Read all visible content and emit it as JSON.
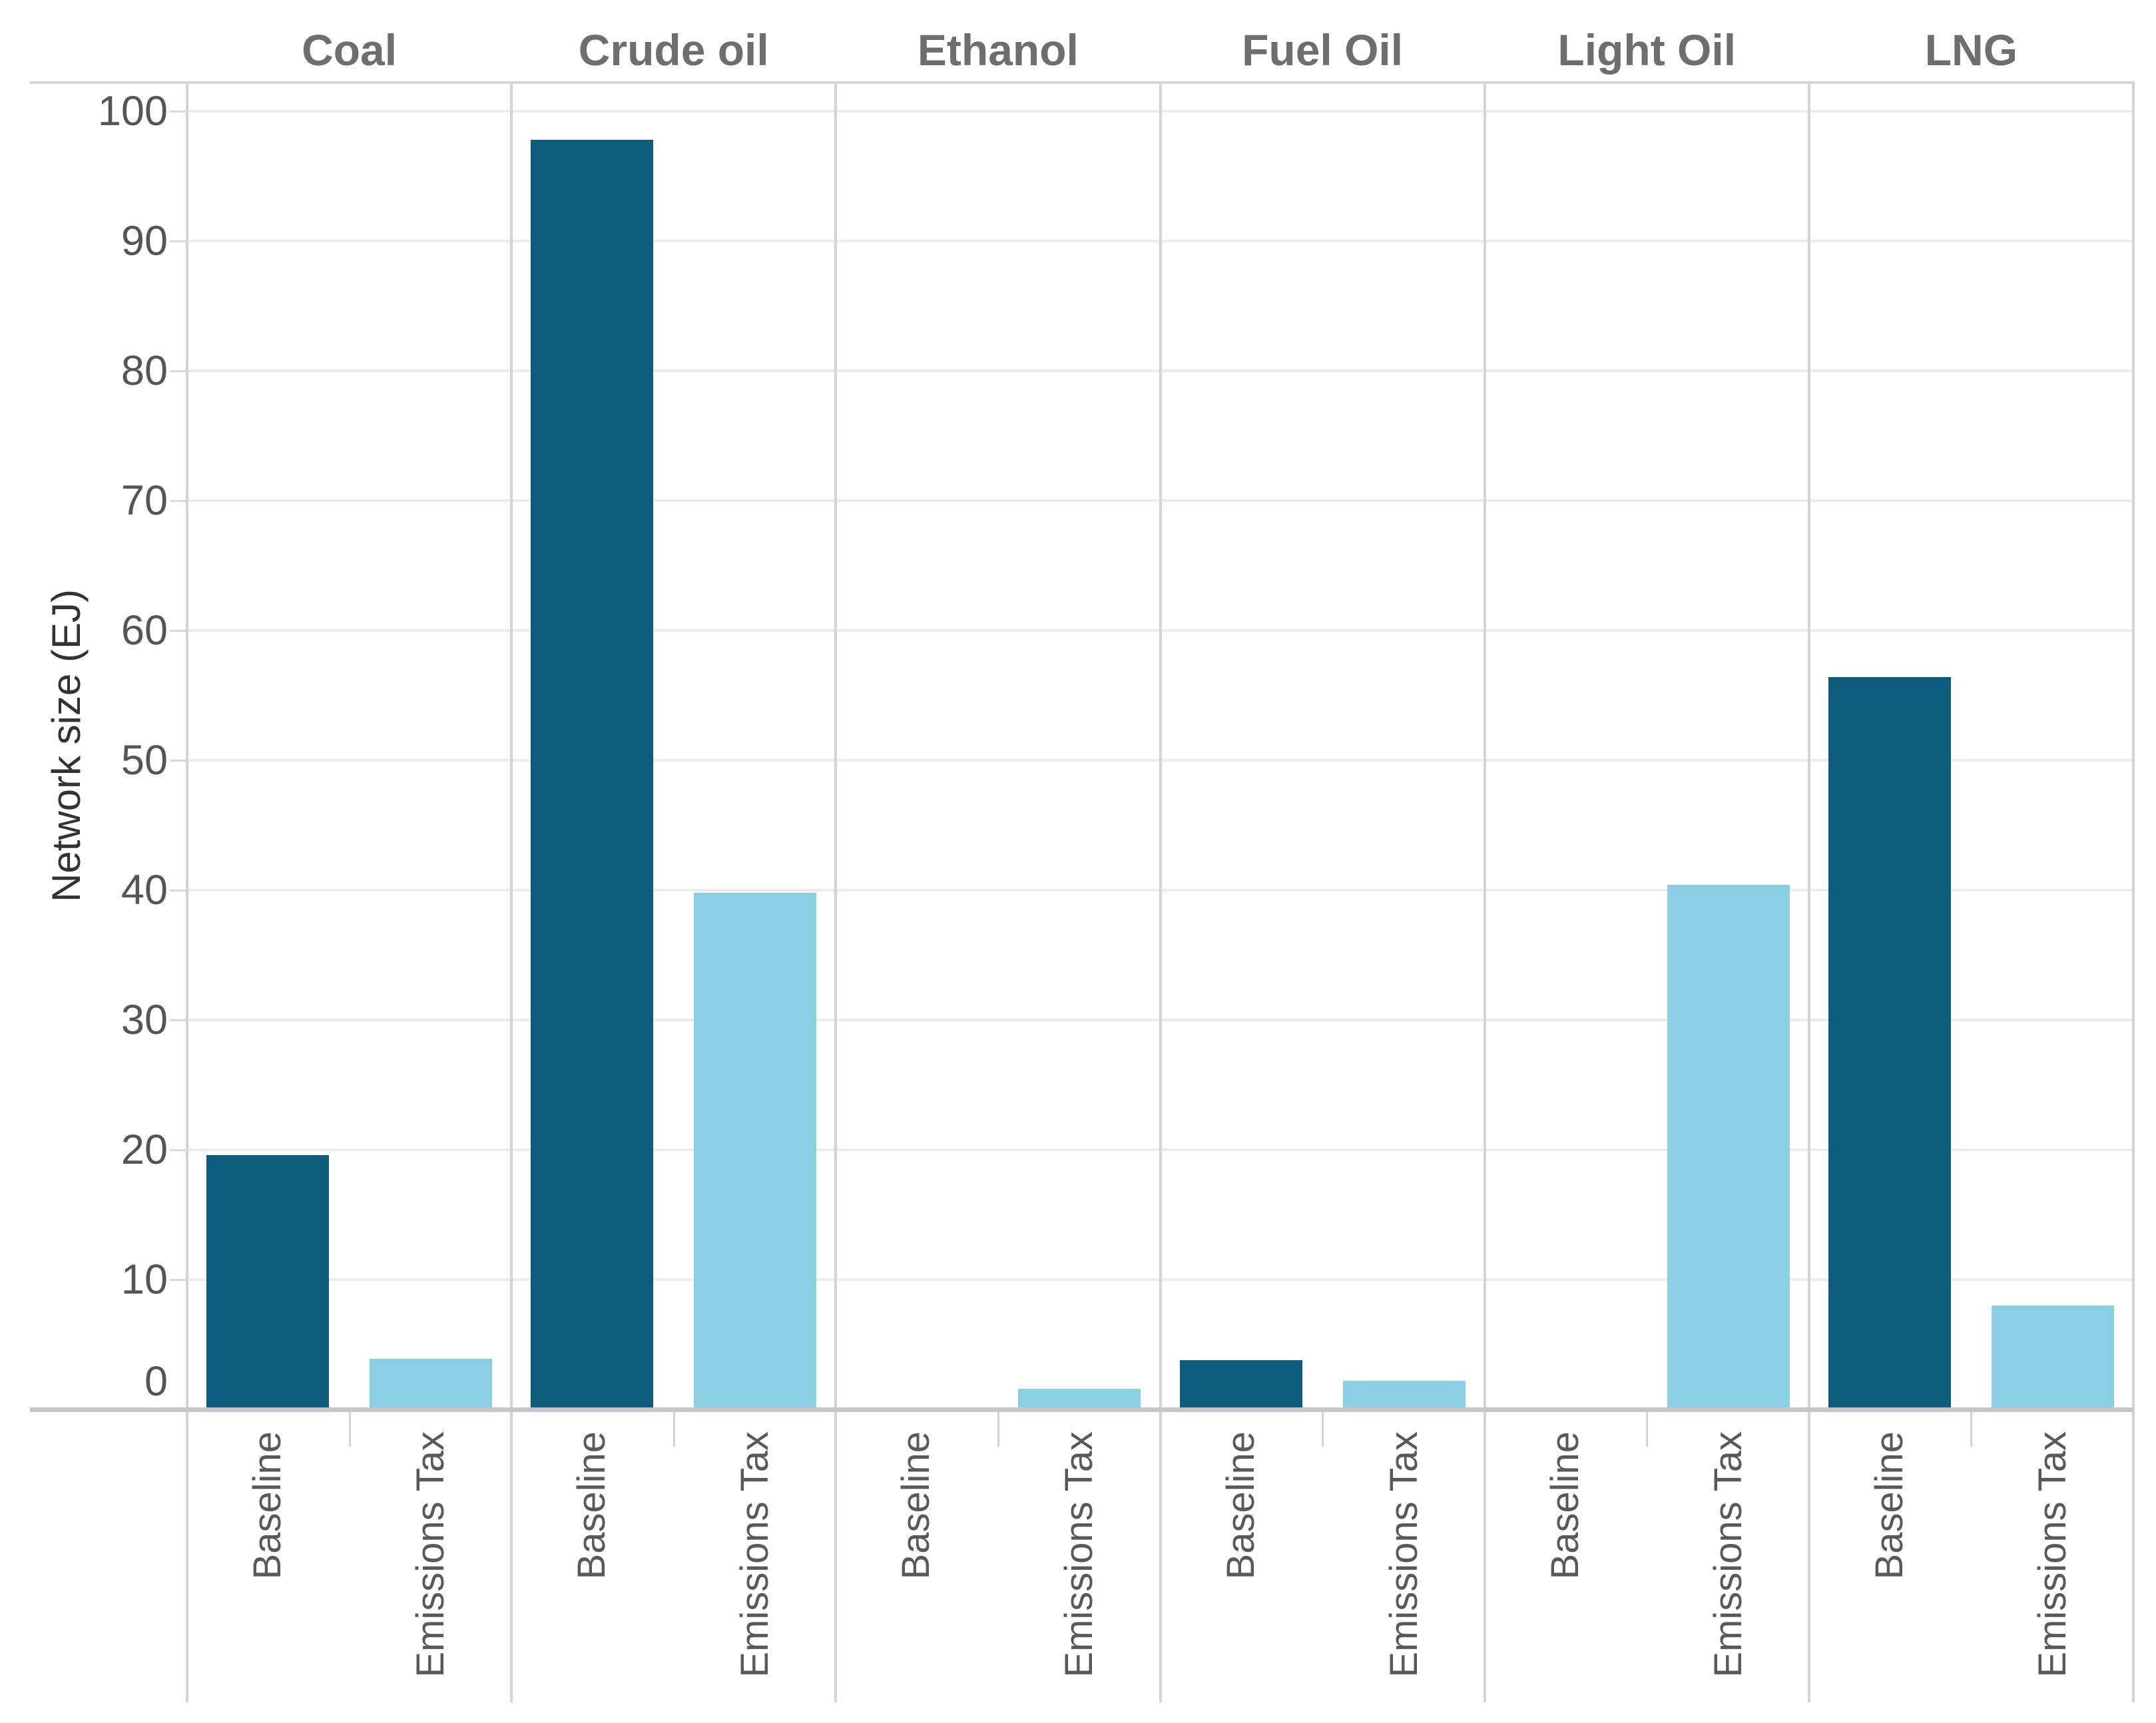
{
  "chart_data": {
    "type": "bar",
    "title": "",
    "ylabel": "Network size (EJ)",
    "xlabel": "",
    "ylim": [
      0,
      103
    ],
    "yticks": [
      0,
      10,
      20,
      30,
      40,
      50,
      60,
      70,
      80,
      90,
      100
    ],
    "grid": true,
    "legend_position": "none",
    "facets": [
      "Coal",
      "Crude oil",
      "Ethanol",
      "Fuel Oil",
      "Light Oil",
      "LNG"
    ],
    "categories": [
      "Baseline",
      "Emissions Tax"
    ],
    "series": [
      {
        "facet": "Coal",
        "values": [
          19.6,
          3.9
        ]
      },
      {
        "facet": "Crude oil",
        "values": [
          97.8,
          39.8
        ]
      },
      {
        "facet": "Ethanol",
        "values": [
          0,
          1.6
        ]
      },
      {
        "facet": "Fuel Oil",
        "values": [
          3.8,
          2.2
        ]
      },
      {
        "facet": "Light Oil",
        "values": [
          0,
          40.4
        ]
      },
      {
        "facet": "LNG",
        "values": [
          56.4,
          8.0
        ]
      }
    ],
    "colors": {
      "baseline": "#0d5c7e",
      "emissions_tax": "#8ccee4",
      "gridline": "#ececec",
      "panel_border": "#d4d4d4",
      "axis_line": "#c6c6c6",
      "title_text": "#6e6e6e",
      "tick_text": "#555555"
    }
  }
}
